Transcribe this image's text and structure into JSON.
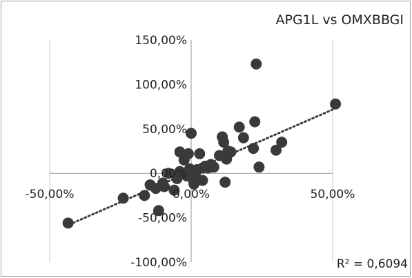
{
  "chart_data": {
    "type": "scatter",
    "title": "APG1L vs OMXBBGI",
    "xlabel": "",
    "ylabel": "",
    "xlim": [
      -50,
      50
    ],
    "ylim": [
      -100,
      150
    ],
    "x_ticks": [
      -50,
      0,
      50
    ],
    "y_ticks": [
      -100,
      -50,
      0,
      50,
      100,
      150
    ],
    "x_tick_labels": [
      "-50,00%",
      "0,00%",
      "50,00%"
    ],
    "y_tick_labels": [
      "-100,00%",
      "-50,00%",
      "0,00%",
      "50,00%",
      "100,00%",
      "150,00%"
    ],
    "grid": "vertical",
    "marker_color": "#3a3a3a",
    "trendline": {
      "style": "dotted",
      "slope": 1.39,
      "intercept": 2.2,
      "x_range": [
        -43,
        51
      ]
    },
    "r_squared_label": "R² = 0,6094",
    "series": [
      {
        "x": [
          -43.5,
          -24,
          -16.5,
          -14.5,
          -12.5,
          -11.5,
          -10,
          -9.5,
          -8,
          -6,
          -5,
          -4,
          -4,
          -2.5,
          -2,
          -1.5,
          -1,
          -0.5,
          0,
          0.5,
          1,
          1.5,
          2,
          3,
          4,
          4,
          5,
          6,
          7,
          8,
          10,
          11,
          11.5,
          12,
          12.5,
          13,
          14,
          17,
          18.5,
          22,
          22.5,
          23,
          24,
          30,
          32,
          51
        ],
        "y": [
          -56,
          -28,
          -25,
          -13,
          -17,
          -42,
          -11,
          -15,
          0,
          -19,
          -6,
          2,
          24,
          15,
          0,
          -3,
          22,
          5,
          45,
          -6,
          -12,
          0,
          4,
          22,
          -8,
          6,
          8,
          6,
          10,
          7,
          20,
          41,
          35,
          -10,
          16,
          25,
          24,
          52,
          40,
          28,
          58,
          123,
          7,
          26,
          35,
          78
        ]
      }
    ]
  }
}
